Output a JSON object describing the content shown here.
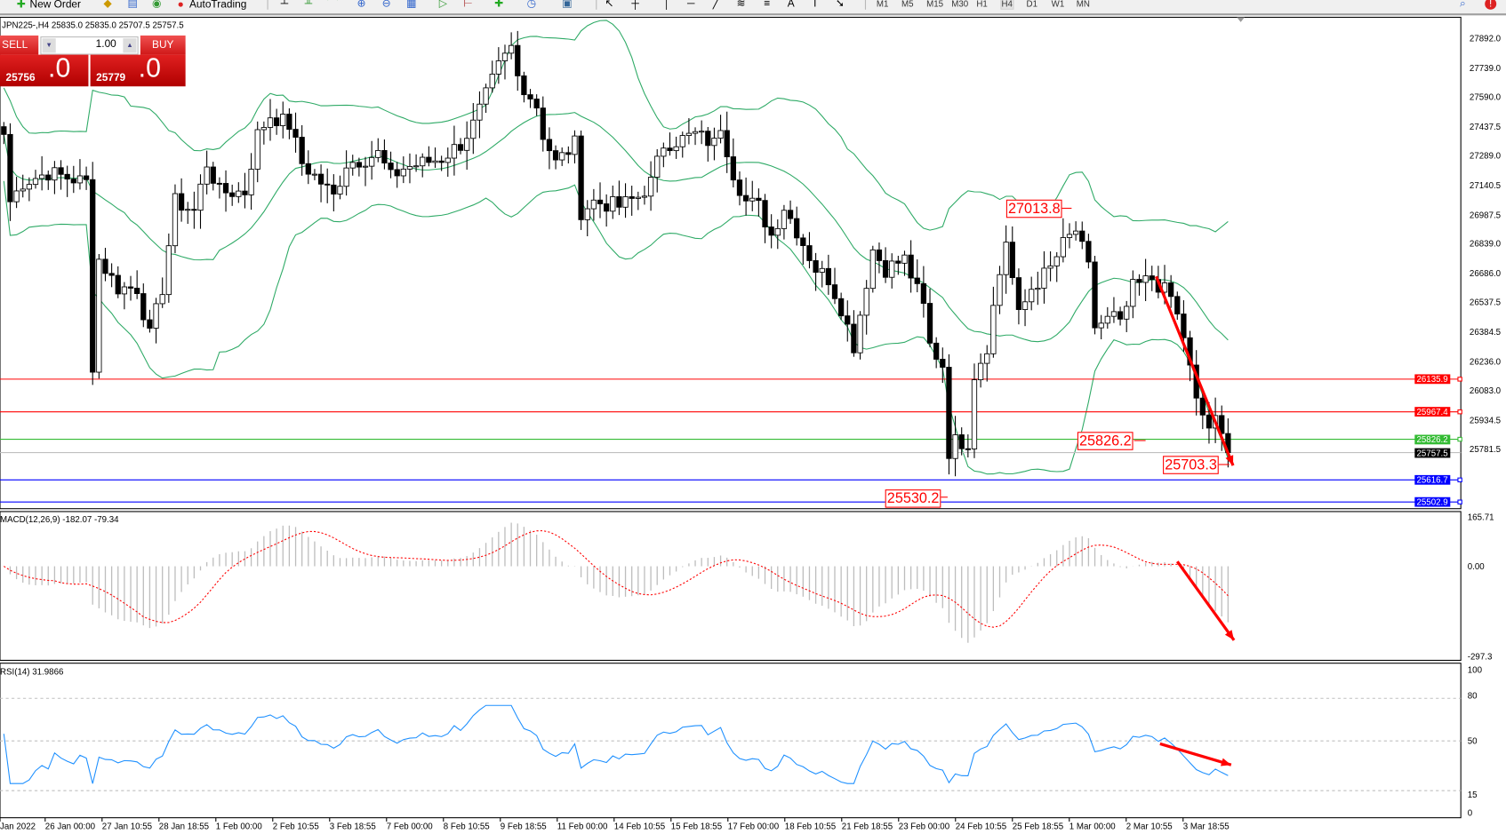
{
  "toolbar": {
    "new_order": "New Order",
    "autotrading": "AutoTrading",
    "timeframes": [
      "M1",
      "M5",
      "M15",
      "M30",
      "H1",
      "H4",
      "D1",
      "W1",
      "MN"
    ],
    "active_timeframe": "H4",
    "icons": [
      "new-order-icon",
      "metaeditor-icon",
      "navigator-icon",
      "signals-icon",
      "autotrading-icon",
      "bar-chart-icon",
      "candlestick-icon",
      "line-chart-icon",
      "zoom-in-icon",
      "zoom-out-icon",
      "tile-windows-icon",
      "autoscroll-icon",
      "chart-shift-icon",
      "indicators-icon",
      "periods-icon",
      "templates-icon",
      "cursor-icon",
      "crosshair-icon",
      "vertical-line-icon",
      "horizontal-line-icon",
      "trendline-icon",
      "fibonacci-icon",
      "text-icon",
      "text-label-icon",
      "arrows-icon",
      "search-icon",
      "notification-icon"
    ]
  },
  "chart": {
    "info": "JPN225-,H4  25835.0 25835.0 25707.5 25757.5",
    "trade_panel": {
      "sell": "SELL",
      "buy": "BUY",
      "lot": "1.00",
      "bid_main": "25756",
      "bid_frac": ".0",
      "ask_main": "25779",
      "ask_frac": ".0"
    },
    "price_axis": [
      "27892.0",
      "27739.0",
      "27590.0",
      "27437.5",
      "27289.0",
      "27140.5",
      "26987.5",
      "26839.0",
      "26686.0",
      "26537.5",
      "26384.5",
      "26236.0",
      "26083.0",
      "25934.5",
      "25781.5"
    ],
    "lines": [
      {
        "price": "26135.9",
        "color": "#ff0000"
      },
      {
        "price": "25967.4",
        "color": "#ff0000"
      },
      {
        "price": "25826.2",
        "color": "#33bb33"
      },
      {
        "price": "25757.5",
        "color": "#000000"
      },
      {
        "price": "25616.7",
        "color": "#0000ff"
      },
      {
        "price": "25502.9",
        "color": "#0000ff"
      }
    ],
    "annotations": [
      "27013.8",
      "25826.2",
      "25703.3",
      "25530.2"
    ],
    "bands_color": "#2eaa66"
  },
  "macd": {
    "header": "MACD(12,26,9) -182.07 -79.34",
    "axis": [
      "165.71",
      "0.00",
      "-297.3"
    ]
  },
  "rsi": {
    "header": "RSI(14) 31.9866",
    "axis": [
      "100",
      "80",
      "50",
      "15",
      "0"
    ],
    "color": "#1e90ff"
  },
  "time_axis": [
    "Jan 2022",
    "26 Jan 00:00",
    "27 Jan 10:55",
    "28 Jan 18:55",
    "1 Feb 00:00",
    "2 Feb 10:55",
    "3 Feb 18:55",
    "7 Feb 00:00",
    "8 Feb 10:55",
    "9 Feb 18:55",
    "11 Feb 00:00",
    "14 Feb 10:55",
    "15 Feb 18:55",
    "17 Feb 00:00",
    "18 Feb 10:55",
    "21 Feb 18:55",
    "23 Feb 00:00",
    "24 Feb 10:55",
    "25 Feb 18:55",
    "1 Mar 00:00",
    "2 Mar 10:55",
    "3 Mar 18:55"
  ],
  "chart_data": {
    "type": "candlestick",
    "close_path": [
      [
        0,
        27397
      ],
      [
        1,
        27051
      ],
      [
        3,
        27150
      ],
      [
        7,
        27200
      ],
      [
        13,
        27150
      ],
      [
        14,
        26210
      ],
      [
        15,
        26754
      ],
      [
        18,
        26606
      ],
      [
        21,
        26606
      ],
      [
        23,
        26359
      ],
      [
        25,
        26606
      ],
      [
        27,
        27051
      ],
      [
        30,
        27002
      ],
      [
        32,
        27249
      ],
      [
        34,
        27101
      ],
      [
        38,
        27101
      ],
      [
        40,
        27397
      ],
      [
        42,
        27496
      ],
      [
        45,
        27447
      ],
      [
        47,
        27249
      ],
      [
        50,
        27150
      ],
      [
        52,
        27076
      ],
      [
        54,
        27249
      ],
      [
        57,
        27274
      ],
      [
        59,
        27298
      ],
      [
        61,
        27175
      ],
      [
        63,
        27224
      ],
      [
        66,
        27249
      ],
      [
        69,
        27274
      ],
      [
        72,
        27348
      ],
      [
        74,
        27447
      ],
      [
        76,
        27595
      ],
      [
        78,
        27744
      ],
      [
        80,
        27843
      ],
      [
        81,
        27694
      ],
      [
        84,
        27546
      ],
      [
        85,
        27397
      ],
      [
        87,
        27249
      ],
      [
        90,
        27348
      ],
      [
        91,
        27002
      ],
      [
        93,
        27051
      ],
      [
        97,
        27026
      ],
      [
        100,
        27076
      ],
      [
        102,
        27150
      ],
      [
        104,
        27348
      ],
      [
        107,
        27373
      ],
      [
        109,
        27397
      ],
      [
        112,
        27348
      ],
      [
        113,
        27447
      ],
      [
        115,
        27200
      ],
      [
        117,
        27051
      ],
      [
        119,
        27026
      ],
      [
        121,
        26878
      ],
      [
        123,
        27026
      ],
      [
        125,
        26903
      ],
      [
        128,
        26705
      ],
      [
        130,
        26655
      ],
      [
        132,
        26507
      ],
      [
        134,
        26309
      ],
      [
        137,
        26804
      ],
      [
        139,
        26705
      ],
      [
        142,
        26754
      ],
      [
        145,
        26507
      ],
      [
        146,
        26309
      ],
      [
        148,
        26210
      ],
      [
        149,
        25765
      ],
      [
        150,
        25815
      ],
      [
        152,
        25815
      ],
      [
        153,
        26161
      ],
      [
        155,
        26309
      ],
      [
        156,
        26507
      ],
      [
        158,
        26853
      ],
      [
        160,
        26458
      ],
      [
        162,
        26606
      ],
      [
        165,
        26705
      ],
      [
        167,
        26829
      ],
      [
        169,
        26903
      ],
      [
        171,
        26705
      ],
      [
        172,
        26408
      ],
      [
        175,
        26458
      ],
      [
        176,
        26408
      ],
      [
        178,
        26606
      ],
      [
        181,
        26655
      ],
      [
        184,
        26557
      ],
      [
        186,
        26359
      ],
      [
        188,
        26013
      ],
      [
        190,
        25889
      ],
      [
        191,
        25914
      ],
      [
        193,
        25757.5
      ]
    ]
  }
}
